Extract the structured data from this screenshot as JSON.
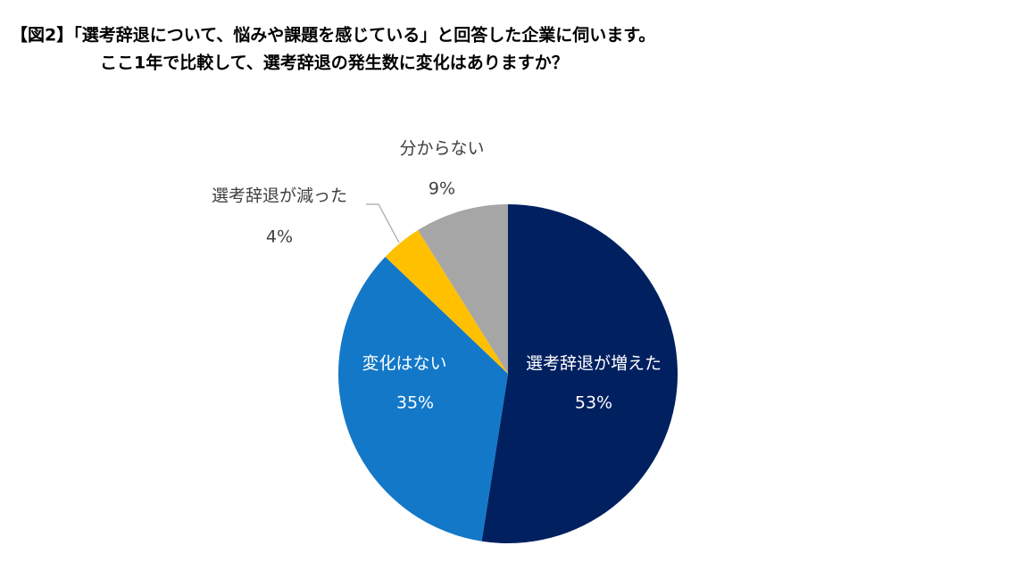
{
  "chart_data": {
    "type": "pie",
    "title": "【図2】「選考辞退について、悩みや課題を感じている」と回答した企業に伺います。",
    "subtitle": "ここ1年で比較して、選考辞退の発生数に変化はありますか？",
    "categories": [
      "選考辞退が増えた",
      "変化はない",
      "選考辞退が減った",
      "分からない"
    ],
    "values": [
      53,
      35,
      4,
      9
    ],
    "value_labels": [
      "53%",
      "35%",
      "4%",
      "9%"
    ],
    "colors": [
      "#002060",
      "#1378c8",
      "#ffc000",
      "#a6a6a6"
    ]
  }
}
